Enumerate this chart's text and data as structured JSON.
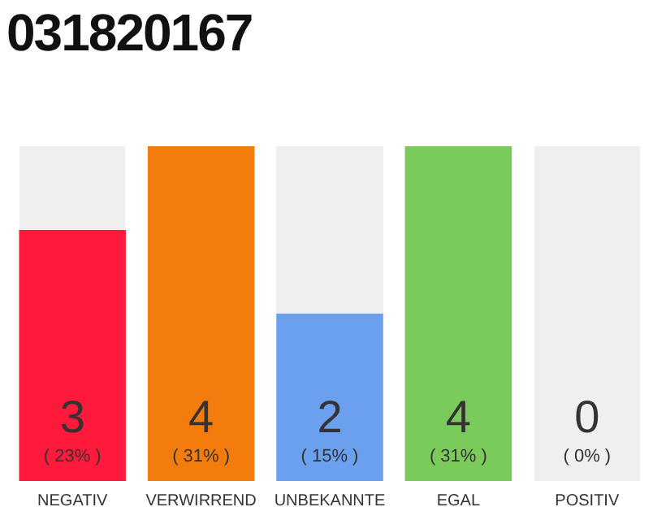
{
  "chart_data": {
    "type": "bar",
    "title": "031820167",
    "categories": [
      "NEGATIV",
      "VERWIRREND",
      "UNBEKANNTE",
      "EGAL",
      "POSITIV"
    ],
    "values": [
      3,
      4,
      2,
      4,
      0
    ],
    "colors": [
      "#ff1a3c",
      "#f47c0c",
      "#6ba0ee",
      "#7bca5c",
      "#9e9e9e"
    ],
    "ylim": [
      0,
      4
    ],
    "tick_labels": "x",
    "grid": false,
    "legend": false,
    "data_labels": true,
    "annotations": [
      "( 23% )",
      "( 31% )",
      "( 15% )",
      "( 31% )",
      "( 0% )"
    ]
  }
}
